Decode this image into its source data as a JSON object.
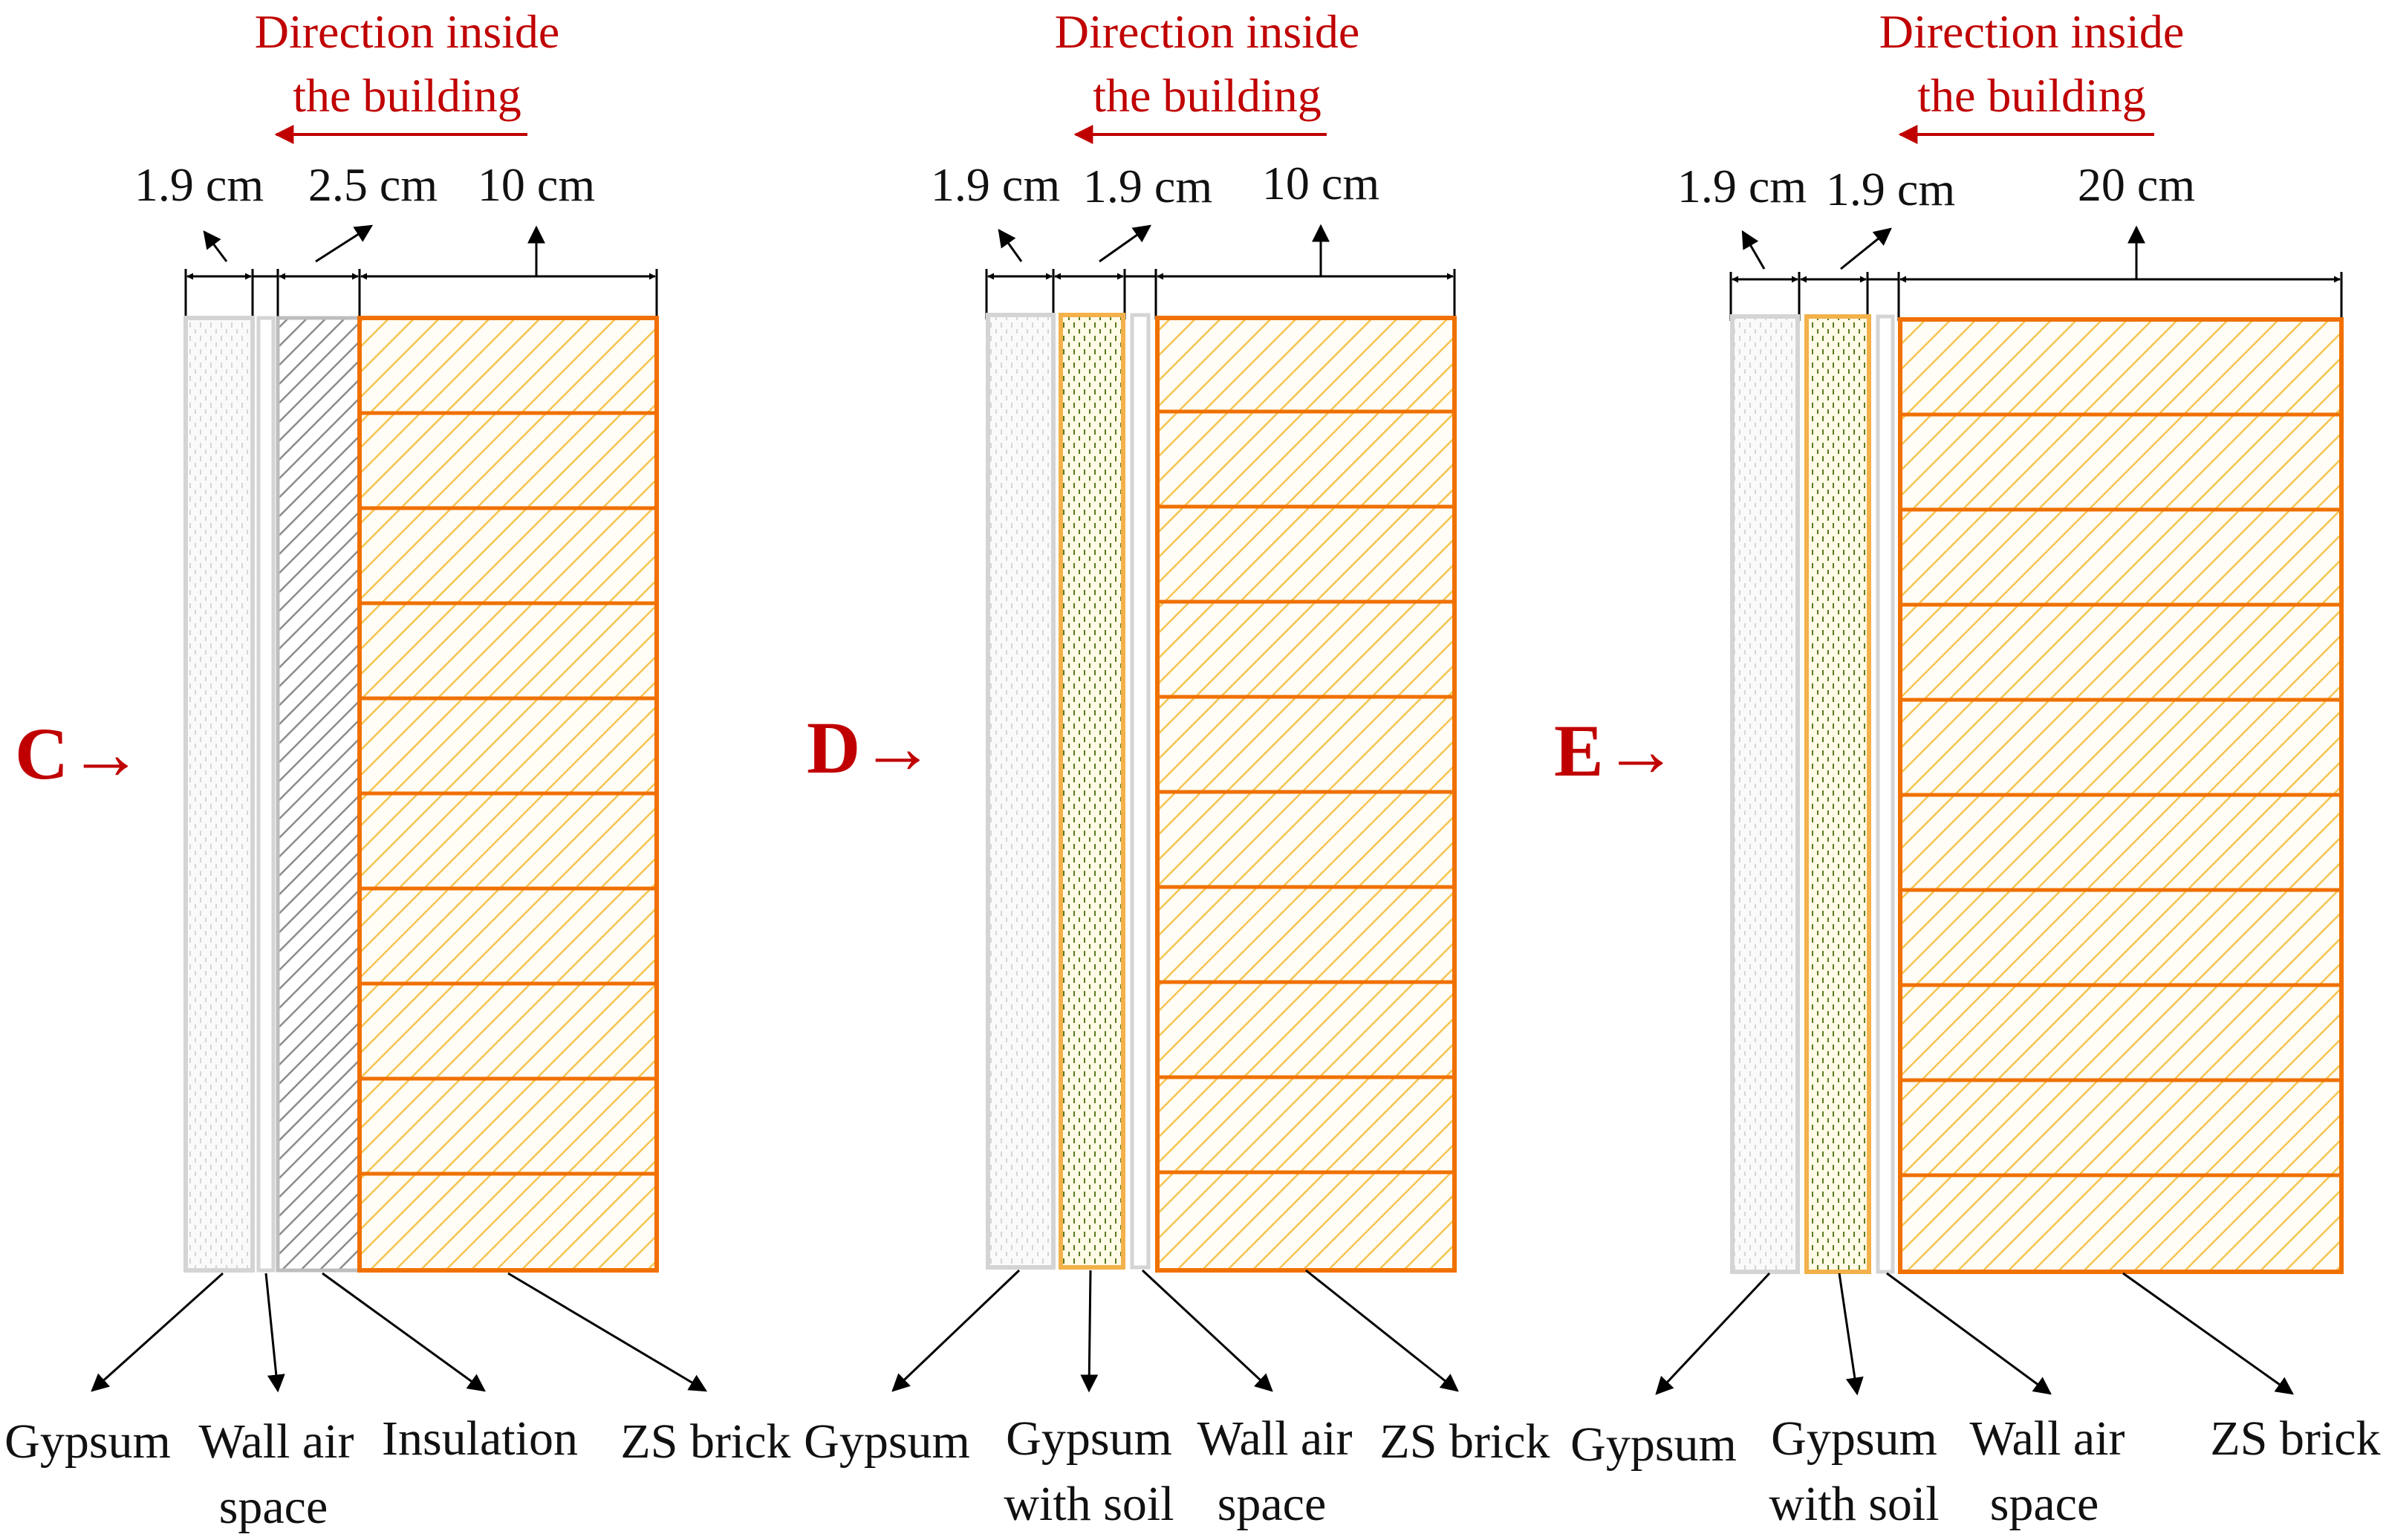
{
  "colors": {
    "accent_red": "#c00000",
    "brick_stroke": "#f07000",
    "brick_hatch": "#f5c451",
    "gypsum_border": "#d9d9d9",
    "insulation_hatch": "#8c8c8c",
    "soil_dots": "#5a7a20"
  },
  "panels": [
    {
      "id": "C",
      "section_label": "C→",
      "direction_line1": "Direction inside",
      "direction_line2": "the building",
      "dims": [
        "1.9 cm",
        "2.5 cm",
        "10 cm"
      ],
      "layers": [
        {
          "line1": "Gypsum",
          "line2": ""
        },
        {
          "line1": "Wall air",
          "line2": "space"
        },
        {
          "line1": "Insulation",
          "line2": ""
        },
        {
          "line1": "ZS brick",
          "line2": ""
        }
      ]
    },
    {
      "id": "D",
      "section_label": "D→",
      "direction_line1": "Direction inside",
      "direction_line2": "the building",
      "dims": [
        "1.9 cm",
        "1.9 cm",
        "10 cm"
      ],
      "layers": [
        {
          "line1": "Gypsum",
          "line2": ""
        },
        {
          "line1": "Gypsum",
          "line2": "with soil"
        },
        {
          "line1": "Wall air",
          "line2": "space"
        },
        {
          "line1": "ZS brick",
          "line2": ""
        }
      ]
    },
    {
      "id": "E",
      "section_label": "E→",
      "direction_line1": "Direction inside",
      "direction_line2": "the building",
      "dims": [
        "1.9 cm",
        "1.9 cm",
        "20 cm"
      ],
      "layers": [
        {
          "line1": "Gypsum",
          "line2": ""
        },
        {
          "line1": "Gypsum",
          "line2": "with soil"
        },
        {
          "line1": "Wall air",
          "line2": "space"
        },
        {
          "line1": "ZS brick",
          "line2": ""
        }
      ]
    }
  ]
}
